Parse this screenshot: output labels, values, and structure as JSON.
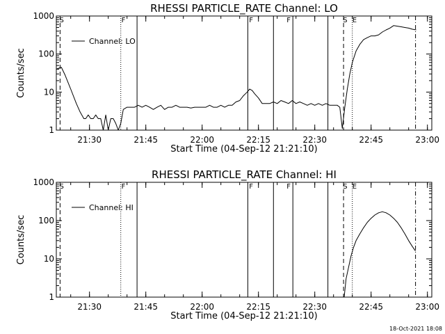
{
  "footer": {
    "date_stamp": "18-Oct-2021 18:08"
  },
  "chart_data": [
    {
      "type": "line",
      "title": "RHESSI PARTICLE_RATE Channel: LO",
      "xlabel": "Start Time (04-Sep-12 21:21:10)",
      "ylabel": "Counts/sec",
      "yscale": "log",
      "ylim": [
        1,
        1000
      ],
      "xlim": [
        "21:21:10",
        "23:01:10"
      ],
      "x_tick_labels": [
        "21:30",
        "21:45",
        "22:00",
        "22:15",
        "22:30",
        "22:45",
        "23:00"
      ],
      "y_tick_labels": [
        "1",
        "10",
        "100",
        "1000"
      ],
      "legend": {
        "position": "top-left",
        "entries": [
          "Channel: LO"
        ]
      },
      "flag_labels": [
        {
          "text": "S",
          "time": "21:22:00"
        },
        {
          "text": "F",
          "time": "21:38:30"
        },
        {
          "text": "F",
          "time": "22:12:30"
        },
        {
          "text": "F",
          "time": "22:22:30"
        },
        {
          "text": "S",
          "time": "22:37:30"
        },
        {
          "text": "E",
          "time": "22:40:00"
        }
      ],
      "vertical_lines": [
        {
          "time": "21:22:10",
          "style": "dashed"
        },
        {
          "time": "21:38:20",
          "style": "dotted"
        },
        {
          "time": "21:42:40",
          "style": "solid"
        },
        {
          "time": "22:12:10",
          "style": "solid"
        },
        {
          "time": "22:19:00",
          "style": "solid"
        },
        {
          "time": "22:24:10",
          "style": "solid"
        },
        {
          "time": "22:33:30",
          "style": "solid"
        },
        {
          "time": "22:37:40",
          "style": "dashed"
        },
        {
          "time": "22:40:00",
          "style": "dotted"
        },
        {
          "time": "22:56:50",
          "style": "dashdot"
        }
      ],
      "series": [
        {
          "name": "Channel: LO",
          "x": [
            "21:21:10",
            "21:22:30",
            "21:23:30",
            "21:25:00",
            "21:26:30",
            "21:27:30",
            "21:28:30",
            "21:29:00",
            "21:29:40",
            "21:30:20",
            "21:31:00",
            "21:31:40",
            "21:32:20",
            "21:33:00",
            "21:33:40",
            "21:34:20",
            "21:35:00",
            "21:35:40",
            "21:36:20",
            "21:37:00",
            "21:37:40",
            "21:38:20",
            "21:39:00",
            "21:40:00",
            "21:41:00",
            "21:42:00",
            "21:43:00",
            "21:44:00",
            "21:45:00",
            "21:46:00",
            "21:47:00",
            "21:48:00",
            "21:49:00",
            "21:50:00",
            "21:51:00",
            "21:52:00",
            "21:53:00",
            "21:54:00",
            "21:55:00",
            "21:56:00",
            "21:57:00",
            "21:58:00",
            "21:59:00",
            "22:00:00",
            "22:01:00",
            "22:02:00",
            "22:03:00",
            "22:04:00",
            "22:05:00",
            "22:06:00",
            "22:07:00",
            "22:08:00",
            "22:09:00",
            "22:10:00",
            "22:11:00",
            "22:12:00",
            "22:12:40",
            "22:13:20",
            "22:14:00",
            "22:15:00",
            "22:16:00",
            "22:17:00",
            "22:18:00",
            "22:19:00",
            "22:20:00",
            "22:21:00",
            "22:22:00",
            "22:23:00",
            "22:24:00",
            "22:25:00",
            "22:26:00",
            "22:27:00",
            "22:28:00",
            "22:29:00",
            "22:30:00",
            "22:31:00",
            "22:32:00",
            "22:33:00",
            "22:34:00",
            "22:35:00",
            "22:36:00",
            "22:36:40",
            "22:37:20",
            "22:38:00",
            "22:38:40",
            "22:39:20",
            "22:40:00",
            "22:41:00",
            "22:42:00",
            "22:43:00",
            "22:44:00",
            "22:45:00",
            "22:46:00",
            "22:47:00",
            "22:48:00",
            "22:49:00",
            "22:50:00",
            "22:51:00",
            "22:52:00",
            "22:53:00",
            "22:54:00",
            "22:55:00",
            "22:56:00",
            "22:57:00"
          ],
          "y": [
            40,
            45,
            28,
            12,
            5,
            3,
            2,
            2,
            2.5,
            2,
            2,
            2.5,
            2,
            2,
            1,
            2.5,
            1,
            2,
            2,
            1.5,
            1,
            1.5,
            3.5,
            4,
            4,
            4,
            4.5,
            4,
            4.5,
            4,
            3.5,
            4,
            4.5,
            3.5,
            4,
            4,
            4.5,
            4,
            4,
            4,
            3.8,
            4,
            4,
            4,
            4,
            4.5,
            4,
            4,
            4.5,
            4,
            4.5,
            4.5,
            5.5,
            6,
            8,
            10,
            12,
            11,
            9,
            7,
            5,
            5,
            5,
            5.5,
            5,
            6,
            5.5,
            5,
            6,
            5,
            5.5,
            5,
            4.5,
            5,
            4.5,
            5,
            4.5,
            5,
            4.5,
            4.5,
            4.5,
            4,
            1.1,
            4,
            12,
            30,
            60,
            120,
            180,
            240,
            270,
            300,
            300,
            320,
            380,
            430,
            480,
            560,
            540,
            520,
            500,
            480,
            450,
            430
          ]
        }
      ]
    },
    {
      "type": "line",
      "title": "RHESSI PARTICLE_RATE Channel: HI",
      "xlabel": "Start Time (04-Sep-12 21:21:10)",
      "ylabel": "Counts/sec",
      "yscale": "log",
      "ylim": [
        1,
        1000
      ],
      "xlim": [
        "21:21:10",
        "23:01:10"
      ],
      "x_tick_labels": [
        "21:30",
        "21:45",
        "22:00",
        "22:15",
        "22:30",
        "22:45",
        "23:00"
      ],
      "y_tick_labels": [
        "1",
        "10",
        "100",
        "1000"
      ],
      "legend": {
        "position": "top-left",
        "entries": [
          "Channel: HI"
        ]
      },
      "flag_labels": [
        {
          "text": "S",
          "time": "21:22:00"
        },
        {
          "text": "F",
          "time": "21:38:30"
        },
        {
          "text": "F",
          "time": "22:12:30"
        },
        {
          "text": "F",
          "time": "22:22:30"
        },
        {
          "text": "S",
          "time": "22:37:30"
        },
        {
          "text": "E",
          "time": "22:40:00"
        }
      ],
      "vertical_lines": [
        {
          "time": "21:22:10",
          "style": "dashed"
        },
        {
          "time": "21:38:20",
          "style": "dotted"
        },
        {
          "time": "21:42:40",
          "style": "solid"
        },
        {
          "time": "22:12:10",
          "style": "solid"
        },
        {
          "time": "22:19:00",
          "style": "solid"
        },
        {
          "time": "22:24:10",
          "style": "solid"
        },
        {
          "time": "22:33:30",
          "style": "solid"
        },
        {
          "time": "22:37:40",
          "style": "dashed"
        },
        {
          "time": "22:40:00",
          "style": "dotted"
        },
        {
          "time": "22:56:50",
          "style": "dashdot"
        }
      ],
      "series": [
        {
          "name": "Channel: HI",
          "x": [
            "22:37:50",
            "22:38:20",
            "22:39:00",
            "22:39:40",
            "22:40:20",
            "22:41:00",
            "22:42:00",
            "22:43:00",
            "22:44:00",
            "22:45:00",
            "22:46:00",
            "22:47:00",
            "22:48:00",
            "22:49:00",
            "22:50:00",
            "22:51:00",
            "22:52:00",
            "22:53:00",
            "22:54:00",
            "22:55:00",
            "22:56:00",
            "22:56:50"
          ],
          "y": [
            1,
            3,
            6,
            12,
            20,
            30,
            45,
            65,
            90,
            115,
            140,
            160,
            170,
            160,
            140,
            115,
            90,
            65,
            45,
            30,
            21,
            16
          ]
        }
      ]
    }
  ]
}
